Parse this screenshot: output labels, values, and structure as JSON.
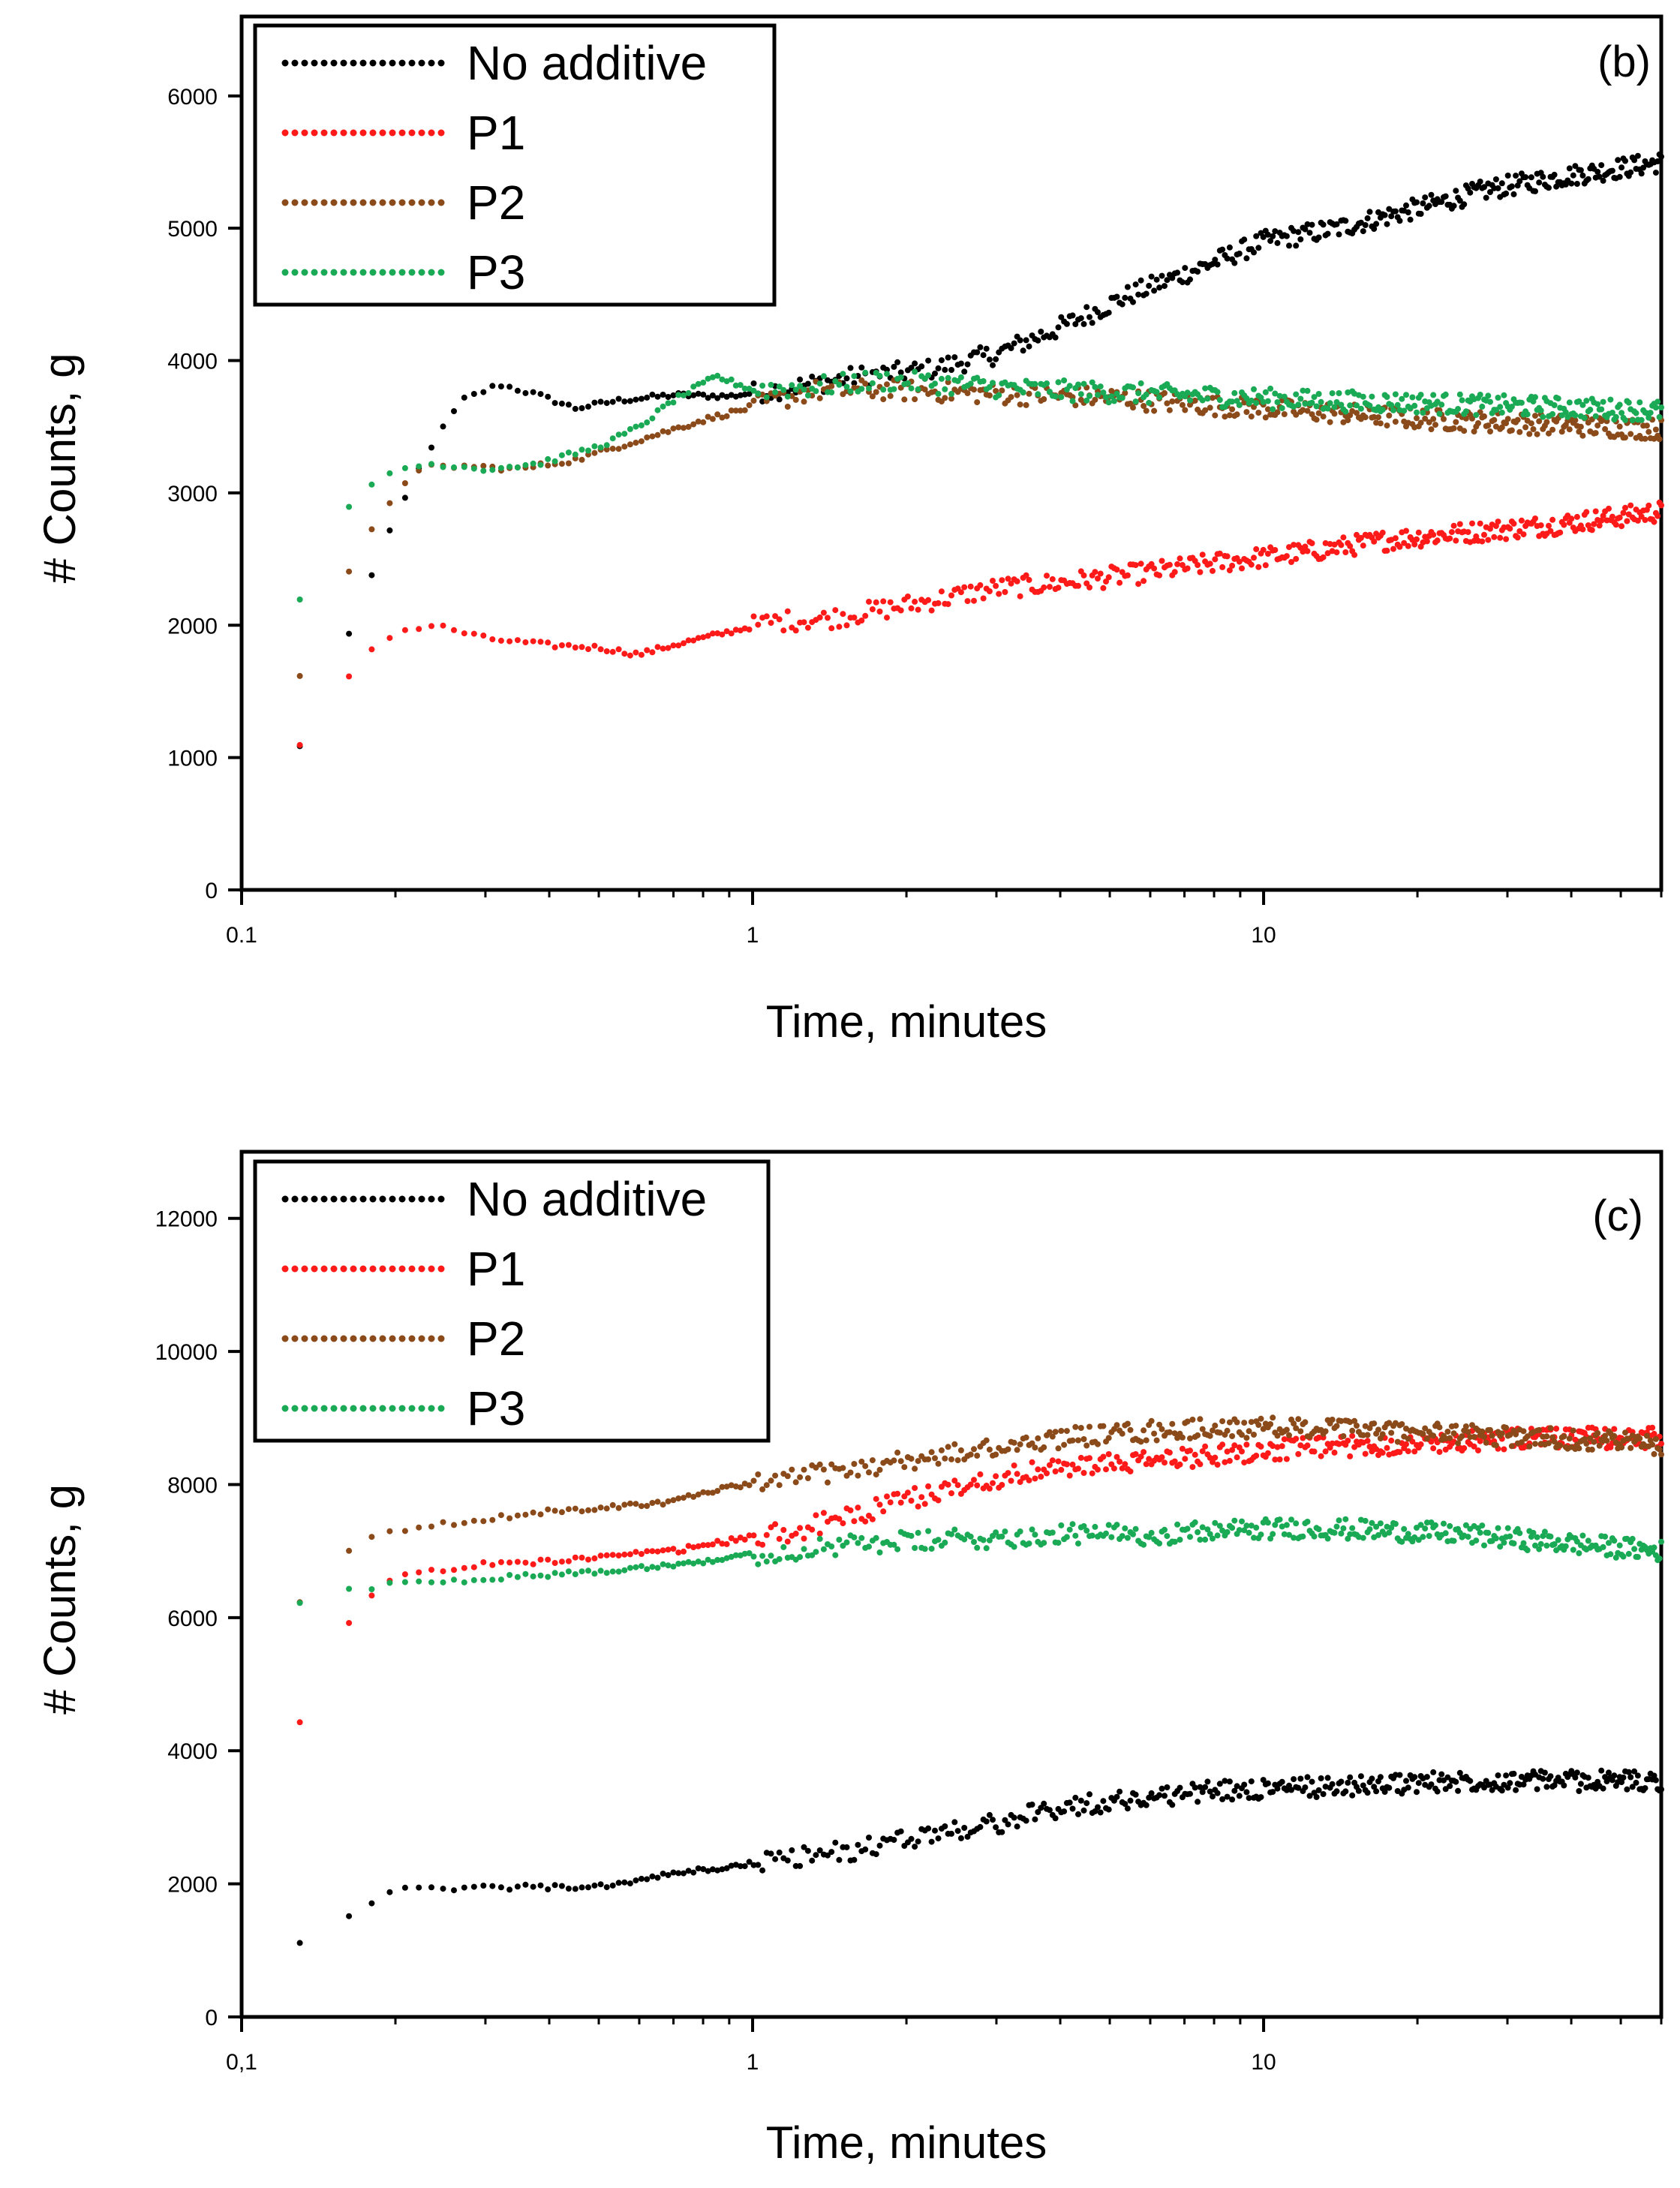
{
  "chart_data": [
    {
      "type": "scatter",
      "panel_label": "(b)",
      "xlabel": "Time, minutes",
      "ylabel": "# Counts, g",
      "x_scale": "log",
      "xlim": [
        0.1,
        60
      ],
      "ylim": [
        0,
        6600
      ],
      "x_tick_labels": [
        "0.1",
        "1",
        "10"
      ],
      "y_tick_labels": [
        "0",
        "1000",
        "2000",
        "3000",
        "4000",
        "5000",
        "6000"
      ],
      "y_ticks": [
        0,
        1000,
        2000,
        3000,
        4000,
        5000,
        6000
      ],
      "grid": false,
      "legend_position": "top-left",
      "series": [
        {
          "name": "No additive",
          "color": "#000000",
          "x": [
            0.13,
            0.15,
            0.17,
            0.2,
            0.23,
            0.27,
            0.32,
            0.38,
            0.45,
            0.55,
            0.7,
            0.9,
            1.2,
            1.6,
            2.2,
            3,
            4,
            5.5,
            7.5,
            10,
            14,
            20,
            28,
            40,
            60
          ],
          "values": [
            1080,
            1600,
            2150,
            2800,
            3300,
            3700,
            3820,
            3740,
            3640,
            3700,
            3740,
            3730,
            3800,
            3880,
            3930,
            4050,
            4250,
            4500,
            4700,
            4900,
            5000,
            5150,
            5300,
            5400,
            5500
          ]
        },
        {
          "name": "P1",
          "color": "#ff1a1a",
          "x": [
            0.13,
            0.15,
            0.17,
            0.2,
            0.24,
            0.3,
            0.4,
            0.5,
            0.6,
            0.7,
            0.9,
            1.1,
            1.4,
            2,
            3,
            4,
            6,
            8,
            12,
            18,
            25,
            35,
            50,
            60
          ],
          "values": [
            1080,
            1400,
            1750,
            1950,
            2000,
            1900,
            1850,
            1830,
            1780,
            1850,
            1950,
            2030,
            2050,
            2150,
            2280,
            2320,
            2400,
            2470,
            2550,
            2650,
            2700,
            2750,
            2820,
            2860
          ]
        },
        {
          "name": "P2",
          "color": "#8b4a1a",
          "x": [
            0.13,
            0.15,
            0.17,
            0.2,
            0.23,
            0.28,
            0.35,
            0.45,
            0.6,
            0.8,
            1,
            1.3,
            1.8,
            2.5,
            3.5,
            5,
            8,
            12,
            20,
            35,
            60
          ],
          "values": [
            1600,
            2100,
            2600,
            3000,
            3200,
            3200,
            3180,
            3250,
            3400,
            3550,
            3650,
            3770,
            3780,
            3760,
            3740,
            3720,
            3660,
            3620,
            3560,
            3520,
            3480
          ]
        },
        {
          "name": "P3",
          "color": "#1aaa55",
          "x": [
            0.13,
            0.15,
            0.17,
            0.2,
            0.24,
            0.3,
            0.38,
            0.5,
            0.6,
            0.7,
            0.85,
            1,
            1.3,
            1.8,
            2.5,
            3.5,
            5,
            8,
            12,
            20,
            35,
            60
          ],
          "values": [
            2180,
            2700,
            3000,
            3180,
            3220,
            3180,
            3220,
            3350,
            3500,
            3700,
            3880,
            3780,
            3800,
            3850,
            3820,
            3780,
            3760,
            3730,
            3700,
            3680,
            3650,
            3620
          ]
        }
      ]
    },
    {
      "type": "scatter",
      "panel_label": "(c)",
      "xlabel": "Time, minutes",
      "ylabel": "# Counts, g",
      "x_scale": "log",
      "xlim": [
        0.1,
        60
      ],
      "ylim": [
        0,
        13000
      ],
      "x_tick_labels": [
        "0,1",
        "1",
        "10"
      ],
      "y_tick_labels": [
        "0",
        "2000",
        "4000",
        "6000",
        "8000",
        "10000",
        "12000"
      ],
      "y_ticks": [
        0,
        2000,
        4000,
        6000,
        8000,
        10000,
        12000
      ],
      "grid": false,
      "legend_position": "top-left",
      "series": [
        {
          "name": "No additive",
          "color": "#000000",
          "x": [
            0.13,
            0.16,
            0.2,
            0.25,
            0.3,
            0.4,
            0.5,
            0.7,
            0.9,
            1.2,
            1.6,
            2.2,
            3,
            4,
            6,
            8,
            12,
            18,
            25,
            35,
            50,
            60
          ],
          "values": [
            1150,
            1500,
            1900,
            1920,
            1950,
            1950,
            1950,
            2150,
            2250,
            2400,
            2500,
            2750,
            2900,
            3150,
            3300,
            3400,
            3450,
            3500,
            3550,
            3550,
            3550,
            3550
          ]
        },
        {
          "name": "P1",
          "color": "#ff1a1a",
          "x": [
            0.13,
            0.15,
            0.17,
            0.2,
            0.24,
            0.3,
            0.4,
            0.5,
            0.7,
            0.9,
            1.2,
            1.6,
            2.2,
            3,
            4,
            6,
            8,
            12,
            18,
            25,
            35,
            50,
            60
          ],
          "values": [
            4450,
            5500,
            6200,
            6600,
            6700,
            6800,
            6850,
            6900,
            7000,
            7150,
            7300,
            7550,
            7850,
            8100,
            8250,
            8350,
            8450,
            8550,
            8600,
            8650,
            8700,
            8700,
            8700
          ]
        },
        {
          "name": "P2",
          "color": "#8b4a1a",
          "x": [
            0.13,
            0.15,
            0.17,
            0.2,
            0.25,
            0.32,
            0.4,
            0.5,
            0.7,
            0.9,
            1.2,
            1.6,
            2.2,
            3,
            4,
            6,
            8,
            12,
            18,
            25,
            35,
            50,
            60
          ],
          "values": [
            6200,
            6800,
            7150,
            7300,
            7400,
            7500,
            7600,
            7650,
            7750,
            7950,
            8100,
            8250,
            8400,
            8550,
            8700,
            8800,
            8850,
            8850,
            8800,
            8750,
            8700,
            8650,
            8600
          ]
        },
        {
          "name": "P3",
          "color": "#1aaa55",
          "x": [
            0.13,
            0.16,
            0.2,
            0.25,
            0.32,
            0.4,
            0.5,
            0.7,
            0.9,
            1.2,
            1.6,
            2.2,
            3,
            4,
            6,
            8,
            12,
            18,
            25,
            35,
            50,
            60
          ],
          "values": [
            6250,
            6400,
            6500,
            6550,
            6600,
            6650,
            6700,
            6800,
            6900,
            7000,
            7100,
            7150,
            7200,
            7250,
            7250,
            7300,
            7350,
            7300,
            7250,
            7150,
            7050,
            7000
          ]
        }
      ]
    }
  ]
}
